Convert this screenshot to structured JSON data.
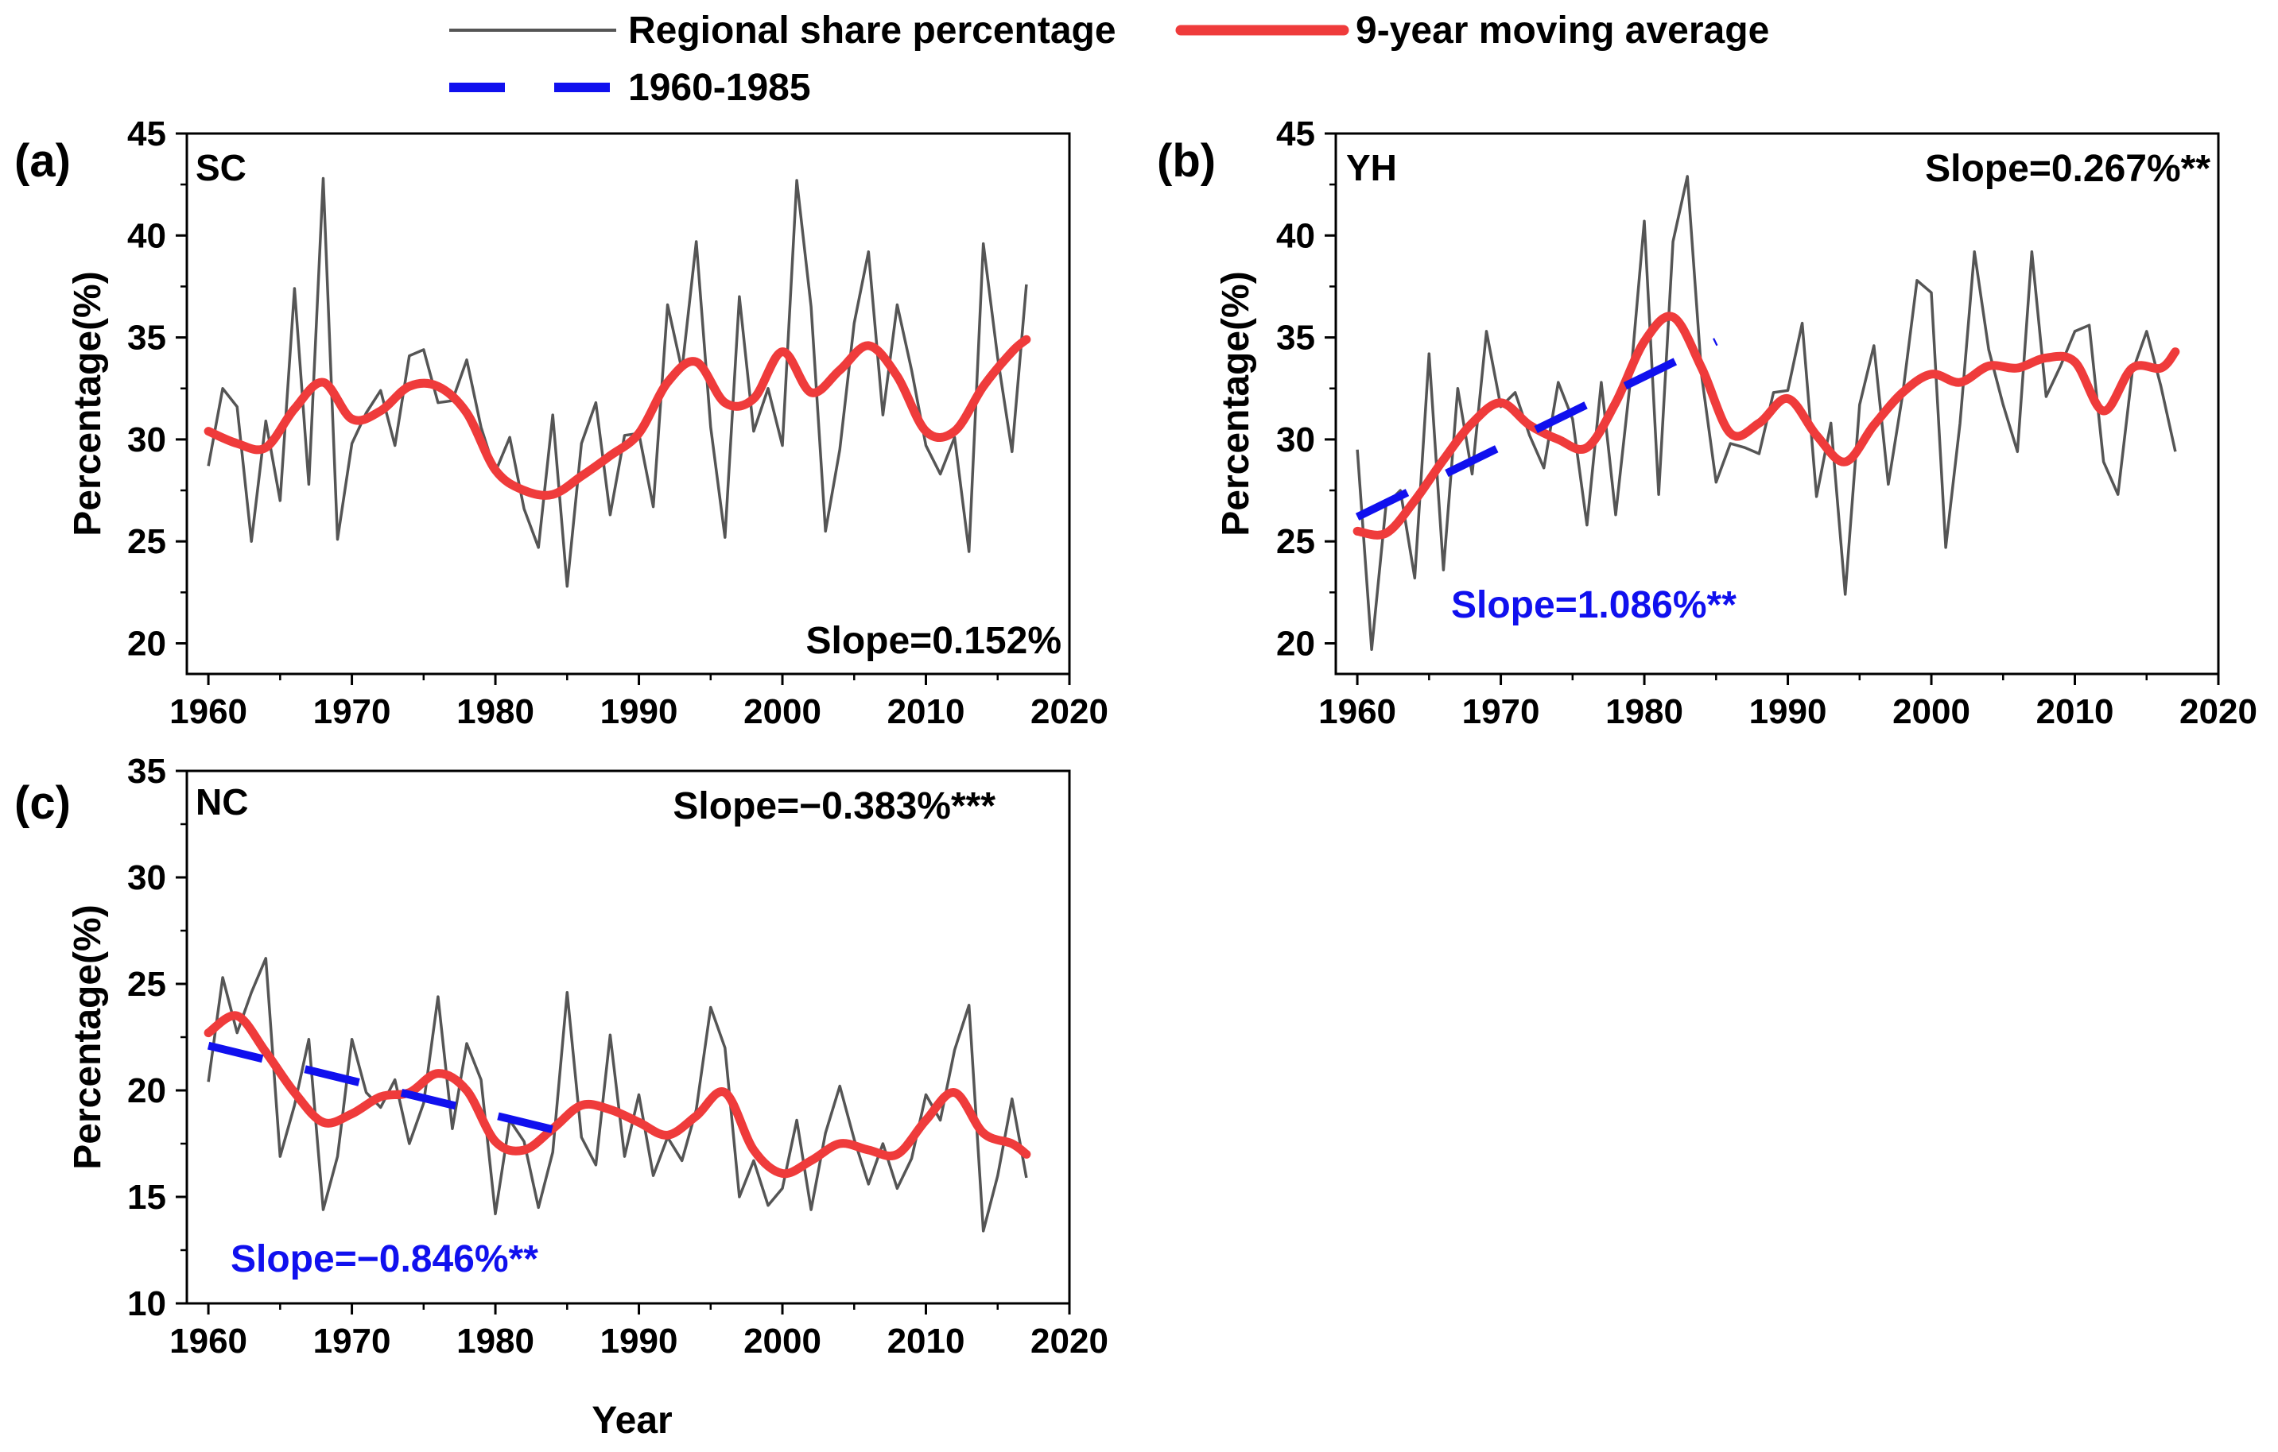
{
  "legend": {
    "items": [
      {
        "label": "Regional share percentage",
        "color": "#555555",
        "style": "solid-thin"
      },
      {
        "label": "9-year moving average",
        "color": "#ef3b3b",
        "style": "solid-thick"
      },
      {
        "label": "1960-1985",
        "color": "#1010ee",
        "style": "dashed"
      }
    ]
  },
  "chart_data": [
    {
      "type": "line",
      "panel_label": "(a)",
      "region": "SC",
      "ylabel": "Percentage(%)",
      "xlabel": "",
      "xlim": [
        1958.5,
        2020
      ],
      "ylim": [
        18.5,
        45
      ],
      "xticks": [
        1960,
        1970,
        1980,
        1990,
        2000,
        2010,
        2020
      ],
      "yticks": [
        20,
        25,
        30,
        35,
        40,
        45
      ],
      "series": [
        {
          "name": "Regional share percentage",
          "color": "#555555",
          "x": [
            1960,
            1961,
            1962,
            1963,
            1964,
            1965,
            1966,
            1967,
            1968,
            1969,
            1970,
            1971,
            1972,
            1973,
            1974,
            1975,
            1976,
            1977,
            1978,
            1979,
            1980,
            1981,
            1982,
            1983,
            1984,
            1985,
            1986,
            1987,
            1988,
            1989,
            1990,
            1991,
            1992,
            1993,
            1994,
            1995,
            1996,
            1997,
            1998,
            1999,
            2000,
            2001,
            2002,
            2003,
            2004,
            2005,
            2006,
            2007,
            2008,
            2009,
            2010,
            2011,
            2012,
            2013,
            2014,
            2015,
            2016,
            2017
          ],
          "y": [
            28.7,
            32.5,
            31.6,
            25.0,
            30.9,
            27.0,
            37.4,
            27.8,
            42.8,
            25.1,
            29.8,
            31.3,
            32.4,
            29.7,
            34.1,
            34.4,
            31.8,
            31.9,
            33.9,
            30.6,
            28.4,
            30.1,
            26.6,
            24.7,
            31.2,
            22.8,
            29.8,
            31.8,
            26.3,
            30.2,
            30.3,
            26.7,
            36.6,
            33.4,
            39.7,
            30.6,
            25.2,
            37.0,
            30.4,
            32.5,
            29.7,
            42.7,
            36.5,
            25.5,
            29.5,
            35.7,
            39.2,
            31.2,
            36.6,
            33.4,
            29.7,
            28.3,
            30.1,
            24.5,
            39.6,
            34.0,
            29.4,
            37.6
          ]
        },
        {
          "name": "9-year moving average",
          "color": "#ef3b3b",
          "x": [
            1960,
            1962,
            1964,
            1966,
            1968,
            1970,
            1972,
            1974,
            1976,
            1978,
            1980,
            1982,
            1984,
            1986,
            1988,
            1990,
            1992,
            1994,
            1996,
            1998,
            2000,
            2002,
            2004,
            2006,
            2008,
            2010,
            2012,
            2014,
            2016,
            2017
          ],
          "y": [
            30.4,
            29.8,
            29.6,
            31.5,
            32.8,
            31.0,
            31.4,
            32.6,
            32.6,
            31.3,
            28.5,
            27.5,
            27.3,
            28.2,
            29.2,
            30.3,
            32.8,
            33.8,
            31.8,
            32.0,
            34.3,
            32.3,
            33.4,
            34.6,
            33.1,
            30.4,
            30.4,
            32.6,
            34.3,
            34.9
          ]
        }
      ],
      "annotations": [
        {
          "text": "Slope=0.152%",
          "color": "#000000"
        }
      ]
    },
    {
      "type": "line",
      "panel_label": "(b)",
      "region": "YH",
      "ylabel": "Percentage(%)",
      "xlabel": "",
      "xlim": [
        1958.5,
        2020
      ],
      "ylim": [
        18.5,
        45
      ],
      "xticks": [
        1960,
        1970,
        1980,
        1990,
        2000,
        2010,
        2020
      ],
      "yticks": [
        20,
        25,
        30,
        35,
        40,
        45
      ],
      "series": [
        {
          "name": "Regional share percentage",
          "color": "#555555",
          "x": [
            1960,
            1961,
            1962,
            1963,
            1964,
            1965,
            1966,
            1967,
            1968,
            1969,
            1970,
            1971,
            1972,
            1973,
            1974,
            1975,
            1976,
            1977,
            1978,
            1979,
            1980,
            1981,
            1982,
            1983,
            1984,
            1985,
            1986,
            1987,
            1988,
            1989,
            1990,
            1991,
            1992,
            1993,
            1994,
            1995,
            1996,
            1997,
            1998,
            1999,
            2000,
            2001,
            2002,
            2003,
            2004,
            2005,
            2006,
            2007,
            2008,
            2009,
            2010,
            2011,
            2012,
            2013,
            2014,
            2015,
            2016,
            2017
          ],
          "y": [
            29.5,
            19.7,
            26.8,
            27.5,
            23.2,
            34.2,
            23.6,
            32.5,
            28.3,
            35.3,
            31.6,
            32.3,
            30.2,
            28.6,
            32.8,
            31.0,
            25.8,
            32.8,
            26.3,
            32.7,
            40.7,
            27.3,
            39.7,
            42.9,
            33.1,
            27.9,
            29.8,
            29.6,
            29.3,
            32.3,
            32.4,
            35.7,
            27.2,
            30.8,
            22.4,
            31.7,
            34.6,
            27.8,
            32.2,
            37.8,
            37.2,
            24.7,
            30.8,
            39.2,
            34.4,
            31.7,
            29.4,
            39.2,
            32.1,
            33.6,
            35.3,
            35.6,
            28.9,
            27.3,
            33.3,
            35.3,
            32.6,
            29.4
          ]
        },
        {
          "name": "9-year moving average",
          "color": "#ef3b3b",
          "x": [
            1960,
            1962,
            1964,
            1966,
            1968,
            1970,
            1972,
            1974,
            1976,
            1978,
            1980,
            1982,
            1984,
            1986,
            1988,
            1990,
            1992,
            1994,
            1996,
            1998,
            2000,
            2002,
            2004,
            2006,
            2008,
            2010,
            2012,
            2014,
            2016,
            2017
          ],
          "y": [
            25.5,
            25.4,
            27.0,
            29.0,
            30.8,
            31.8,
            30.7,
            30.0,
            29.6,
            31.8,
            34.8,
            36.0,
            33.5,
            30.3,
            30.8,
            32.0,
            30.2,
            28.9,
            30.7,
            32.3,
            33.2,
            32.8,
            33.6,
            33.5,
            34.0,
            33.8,
            31.4,
            33.5,
            33.5,
            34.3
          ]
        },
        {
          "name": "1960-1985",
          "color": "#1010ee",
          "dashed": true,
          "x": [
            1960,
            1985
          ],
          "y": [
            26.2,
            34.8
          ]
        }
      ],
      "annotations": [
        {
          "text": "Slope=0.267%**",
          "color": "#000000"
        },
        {
          "text": "Slope=1.086%**",
          "color": "#1010ee"
        }
      ]
    },
    {
      "type": "line",
      "panel_label": "(c)",
      "region": "NC",
      "ylabel": "Percentage(%)",
      "xlabel": "Year",
      "xlim": [
        1958.5,
        2020
      ],
      "ylim": [
        10,
        35
      ],
      "xticks": [
        1960,
        1970,
        1980,
        1990,
        2000,
        2010,
        2020
      ],
      "yticks": [
        10,
        15,
        20,
        25,
        30,
        35
      ],
      "series": [
        {
          "name": "Regional share percentage",
          "color": "#555555",
          "x": [
            1960,
            1961,
            1962,
            1963,
            1964,
            1965,
            1966,
            1967,
            1968,
            1969,
            1970,
            1971,
            1972,
            1973,
            1974,
            1975,
            1976,
            1977,
            1978,
            1979,
            1980,
            1981,
            1982,
            1983,
            1984,
            1985,
            1986,
            1987,
            1988,
            1989,
            1990,
            1991,
            1992,
            1993,
            1994,
            1995,
            1996,
            1997,
            1998,
            1999,
            2000,
            2001,
            2002,
            2003,
            2004,
            2005,
            2006,
            2007,
            2008,
            2009,
            2010,
            2011,
            2012,
            2013,
            2014,
            2015,
            2016,
            2017
          ],
          "y": [
            20.4,
            25.3,
            22.7,
            24.6,
            26.2,
            16.9,
            19.3,
            22.4,
            14.4,
            16.9,
            22.4,
            19.9,
            19.2,
            20.5,
            17.5,
            19.4,
            24.4,
            18.2,
            22.2,
            20.5,
            14.2,
            18.6,
            17.6,
            14.5,
            17.1,
            24.6,
            17.8,
            16.5,
            22.6,
            16.9,
            19.8,
            16.0,
            17.8,
            16.7,
            19.1,
            23.9,
            22.0,
            15.0,
            16.7,
            14.6,
            15.4,
            18.6,
            14.4,
            18.0,
            20.2,
            17.7,
            15.6,
            17.5,
            15.4,
            16.8,
            19.8,
            18.6,
            21.9,
            24.0,
            13.4,
            16.0,
            19.6,
            15.9
          ]
        },
        {
          "name": "9-year moving average",
          "color": "#ef3b3b",
          "x": [
            1960,
            1962,
            1964,
            1966,
            1968,
            1970,
            1972,
            1974,
            1976,
            1978,
            1980,
            1982,
            1984,
            1986,
            1988,
            1990,
            1992,
            1994,
            1996,
            1998,
            2000,
            2002,
            2004,
            2006,
            2008,
            2010,
            2012,
            2014,
            2016,
            2017
          ],
          "y": [
            22.7,
            23.5,
            21.8,
            19.9,
            18.5,
            18.9,
            19.7,
            19.9,
            20.8,
            20.0,
            17.6,
            17.2,
            18.2,
            19.3,
            19.1,
            18.5,
            17.9,
            18.8,
            19.9,
            17.2,
            16.1,
            16.7,
            17.5,
            17.2,
            17.0,
            18.6,
            19.9,
            18.0,
            17.5,
            17.0
          ]
        },
        {
          "name": "1960-1985",
          "color": "#1010ee",
          "dashed": true,
          "x": [
            1960,
            1985
          ],
          "y": [
            22.1,
            18.0
          ]
        }
      ],
      "annotations": [
        {
          "text": "Slope=−0.383%***",
          "color": "#000000"
        },
        {
          "text": "Slope=−0.846%**",
          "color": "#1010ee"
        }
      ]
    }
  ]
}
